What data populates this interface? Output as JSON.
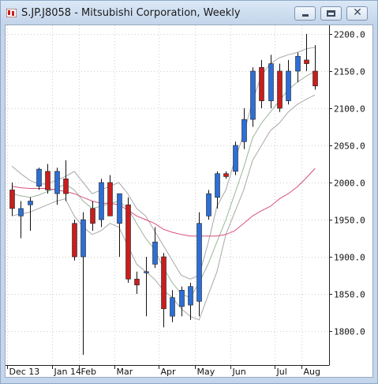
{
  "window": {
    "title": "S.JP.J8058 - Mitsubishi Corporation, Weekly",
    "buttons": {
      "minimize": "minimize",
      "maximize": "maximize",
      "close": "close"
    }
  },
  "colors": {
    "up": "#2c6fd6",
    "down": "#c81e1e",
    "ma_short": "#9ab59a",
    "ma_long": "#d8507e",
    "bollinger": "#a8a8a8"
  },
  "chart_data": {
    "type": "candlestick",
    "title": "S.JP.J8058 - Mitsubishi Corporation, Weekly",
    "ylim": [
      1770,
      2210
    ],
    "y_ticks": [
      "2200.0",
      "2150.0",
      "2100.0",
      "2050.0",
      "2000.0",
      "1950.0",
      "1900.0",
      "1850.0",
      "1800.0"
    ],
    "x_ticks": [
      "Dec 13",
      "Jan 14",
      "Feb",
      "Mar",
      "Apr",
      "May",
      "Jun",
      "Jul",
      "Aug"
    ],
    "x_tick_week_index": [
      0,
      5,
      8,
      12,
      17,
      21,
      25,
      30,
      33
    ],
    "grid": true,
    "candles": [
      {
        "o": 1990,
        "h": 2000,
        "l": 1955,
        "c": 1965
      },
      {
        "o": 1955,
        "h": 1975,
        "l": 1925,
        "c": 1965
      },
      {
        "o": 1970,
        "h": 1980,
        "l": 1935,
        "c": 1975
      },
      {
        "o": 1995,
        "h": 2020,
        "l": 1990,
        "c": 2018
      },
      {
        "o": 2015,
        "h": 2025,
        "l": 1985,
        "c": 1990
      },
      {
        "o": 1985,
        "h": 2020,
        "l": 1970,
        "c": 2015
      },
      {
        "o": 2005,
        "h": 2030,
        "l": 1975,
        "c": 1985
      },
      {
        "o": 1945,
        "h": 1950,
        "l": 1895,
        "c": 1900
      },
      {
        "o": 1900,
        "h": 1960,
        "l": 1768,
        "c": 1950
      },
      {
        "o": 1965,
        "h": 1975,
        "l": 1935,
        "c": 1945
      },
      {
        "o": 1950,
        "h": 2005,
        "l": 1940,
        "c": 2000
      },
      {
        "o": 2000,
        "h": 2010,
        "l": 1955,
        "c": 1955
      },
      {
        "o": 1945,
        "h": 1985,
        "l": 1900,
        "c": 1985
      },
      {
        "o": 1970,
        "h": 1980,
        "l": 1865,
        "c": 1870
      },
      {
        "o": 1870,
        "h": 1880,
        "l": 1850,
        "c": 1862
      },
      {
        "o": 1880,
        "h": 1900,
        "l": 1820,
        "c": 1880
      },
      {
        "o": 1890,
        "h": 1940,
        "l": 1885,
        "c": 1920
      },
      {
        "o": 1900,
        "h": 1905,
        "l": 1805,
        "c": 1830
      },
      {
        "o": 1820,
        "h": 1855,
        "l": 1812,
        "c": 1845
      },
      {
        "o": 1833,
        "h": 1860,
        "l": 1820,
        "c": 1855
      },
      {
        "o": 1835,
        "h": 1865,
        "l": 1815,
        "c": 1860
      },
      {
        "o": 1840,
        "h": 1960,
        "l": 1820,
        "c": 1945
      },
      {
        "o": 1955,
        "h": 1990,
        "l": 1950,
        "c": 1985
      },
      {
        "o": 1980,
        "h": 2015,
        "l": 1965,
        "c": 2012
      },
      {
        "o": 2012,
        "h": 2015,
        "l": 2005,
        "c": 2008
      },
      {
        "o": 2015,
        "h": 2055,
        "l": 2010,
        "c": 2050
      },
      {
        "o": 2055,
        "h": 2100,
        "l": 2045,
        "c": 2085
      },
      {
        "o": 2085,
        "h": 2155,
        "l": 2075,
        "c": 2150
      },
      {
        "o": 2155,
        "h": 2165,
        "l": 2100,
        "c": 2110
      },
      {
        "o": 2110,
        "h": 2172,
        "l": 2100,
        "c": 2160
      },
      {
        "o": 2150,
        "h": 2160,
        "l": 2095,
        "c": 2100
      },
      {
        "o": 2110,
        "h": 2165,
        "l": 2105,
        "c": 2150
      },
      {
        "o": 2150,
        "h": 2175,
        "l": 2135,
        "c": 2170
      },
      {
        "o": 2165,
        "h": 2200,
        "l": 2150,
        "c": 2160
      },
      {
        "o": 2150,
        "h": 2185,
        "l": 2125,
        "c": 2130
      }
    ],
    "overlays": {
      "upper_band": [
        2022,
        2012,
        2003,
        1998,
        1998,
        2003,
        2008,
        2015,
        2000,
        1985,
        1990,
        1995,
        2000,
        1985,
        1965,
        1955,
        1935,
        1915,
        1895,
        1875,
        1870,
        1875,
        1918,
        1968,
        1990,
        2030,
        2065,
        2110,
        2145,
        2160,
        2168,
        2172,
        2175,
        2180,
        2182
      ],
      "ma_short": [
        1985,
        1982,
        1980,
        1983,
        1988,
        1992,
        1998,
        1990,
        1975,
        1965,
        1968,
        1972,
        1975,
        1965,
        1945,
        1925,
        1910,
        1885,
        1865,
        1850,
        1845,
        1865,
        1890,
        1920,
        1950,
        1985,
        2020,
        2060,
        2080,
        2095,
        2110,
        2125,
        2135,
        2143,
        2150
      ],
      "lower_band": [
        1955,
        1958,
        1960,
        1965,
        1970,
        1975,
        1978,
        1955,
        1940,
        1930,
        1935,
        1945,
        1940,
        1915,
        1890,
        1880,
        1870,
        1855,
        1845,
        1830,
        1820,
        1815,
        1848,
        1880,
        1930,
        1960,
        1990,
        2030,
        2050,
        2070,
        2080,
        2095,
        2105,
        2112,
        2118
      ],
      "ma_long": [
        1995,
        1993,
        1992,
        1992,
        1992,
        1990,
        1988,
        1985,
        1980,
        1975,
        1972,
        1972,
        1970,
        1963,
        1955,
        1950,
        1945,
        1937,
        1933,
        1930,
        1928,
        1928,
        1928,
        1928,
        1930,
        1935,
        1945,
        1955,
        1962,
        1968,
        1978,
        1985,
        1994,
        2006,
        2019
      ]
    }
  }
}
